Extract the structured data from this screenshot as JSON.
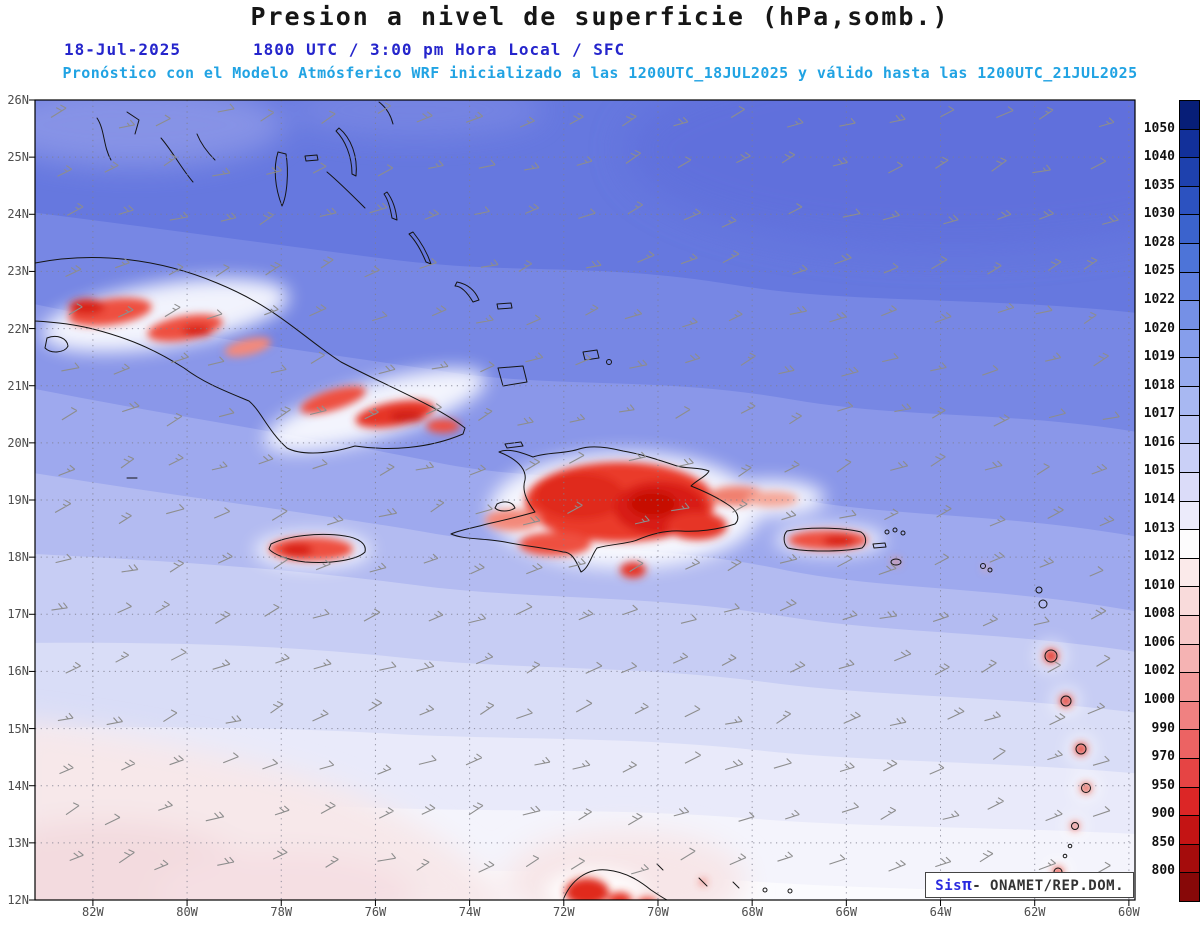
{
  "header": {
    "date": "18-Jul-2025",
    "time_line": "1800 UTC / 3:00 pm Hora Local / SFC",
    "model_line": "Pronóstico con el Modelo Atmósferico WRF inicializado a las 1200UTC_18JUL2025 y válido hasta las  1200UTC_21JUL2025"
  },
  "credit": {
    "sis": "Sis",
    "pi": "π",
    "text": "- ONAMET/REP.DOM."
  },
  "chart_data": {
    "type": "heatmap",
    "title": "Presion a nivel de superficie (hPa,somb.)",
    "units": "hPa",
    "legend_position": "right",
    "grid": "dotted",
    "x_ticks": [
      "82W",
      "80W",
      "78W",
      "76W",
      "74W",
      "72W",
      "70W",
      "68W",
      "66W",
      "64W",
      "62W",
      "60W"
    ],
    "y_ticks": [
      "26N",
      "25N",
      "24N",
      "23N",
      "22N",
      "21N",
      "20N",
      "19N",
      "18N",
      "17N",
      "16N",
      "15N",
      "14N",
      "13N",
      "12N"
    ],
    "colorbar_values": [
      1050,
      1040,
      1035,
      1030,
      1028,
      1025,
      1022,
      1020,
      1019,
      1018,
      1017,
      1016,
      1015,
      1014,
      1013,
      1012,
      1010,
      1008,
      1006,
      1002,
      1000,
      990,
      970,
      950,
      900,
      850,
      800
    ],
    "colorbar_colors": [
      "#071e78",
      "#12309a",
      "#1e41ae",
      "#2c52c0",
      "#3b63cd",
      "#4d74d8",
      "#6080e0",
      "#7590e6",
      "#869eeb",
      "#97abef",
      "#a8b8f2",
      "#b9c4f5",
      "#cad0f7",
      "#dbdcf9",
      "#ecebfb",
      "#fdfcfd",
      "#fbeaea",
      "#f9dbdb",
      "#f7c8c8",
      "#f5b3b3",
      "#f39b9b",
      "#f08181",
      "#ec6363",
      "#e64444",
      "#dc2626",
      "#c41414",
      "#a50c0c",
      "#870808"
    ]
  }
}
